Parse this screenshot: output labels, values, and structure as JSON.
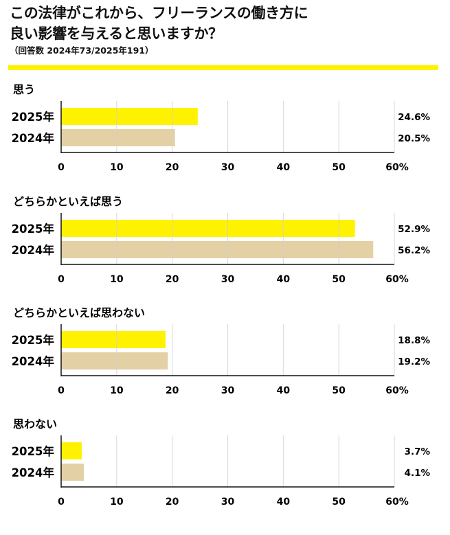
{
  "title": {
    "line1": "この法律がこれから、フリーランスの働き方に",
    "line2": "良い影響を与えると思いますか？",
    "note": "（回答数 2024年73/2025年191）"
  },
  "colors": {
    "accent": "#fff200",
    "year2025": "#fff200",
    "year2024": "#e3d0a4",
    "grid": "#d0d0d0",
    "axis": "#111111"
  },
  "chart_data": [
    {
      "type": "bar",
      "orientation": "horizontal",
      "title": "思う",
      "categories": [
        "2025年",
        "2024年"
      ],
      "values": [
        24.6,
        20.5
      ],
      "value_labels": [
        "24.6%",
        "20.5%"
      ],
      "xlim": [
        0,
        60
      ],
      "ticks": [
        "0",
        "10",
        "20",
        "30",
        "40",
        "50",
        "60%"
      ],
      "grid": true
    },
    {
      "type": "bar",
      "orientation": "horizontal",
      "title": "どちらかといえば思う",
      "categories": [
        "2025年",
        "2024年"
      ],
      "values": [
        52.9,
        56.2
      ],
      "value_labels": [
        "52.9%",
        "56.2%"
      ],
      "xlim": [
        0,
        60
      ],
      "ticks": [
        "0",
        "10",
        "20",
        "30",
        "40",
        "50",
        "60%"
      ],
      "grid": true
    },
    {
      "type": "bar",
      "orientation": "horizontal",
      "title": "どちらかといえば思わない",
      "categories": [
        "2025年",
        "2024年"
      ],
      "values": [
        18.8,
        19.2
      ],
      "value_labels": [
        "18.8%",
        "19.2%"
      ],
      "xlim": [
        0,
        60
      ],
      "ticks": [
        "0",
        "10",
        "20",
        "30",
        "40",
        "50",
        "60%"
      ],
      "grid": true
    },
    {
      "type": "bar",
      "orientation": "horizontal",
      "title": "思わない",
      "categories": [
        "2025年",
        "2024年"
      ],
      "values": [
        3.7,
        4.1
      ],
      "value_labels": [
        "3.7%",
        "4.1%"
      ],
      "xlim": [
        0,
        60
      ],
      "ticks": [
        "0",
        "10",
        "20",
        "30",
        "40",
        "50",
        "60%"
      ],
      "grid": true
    }
  ]
}
